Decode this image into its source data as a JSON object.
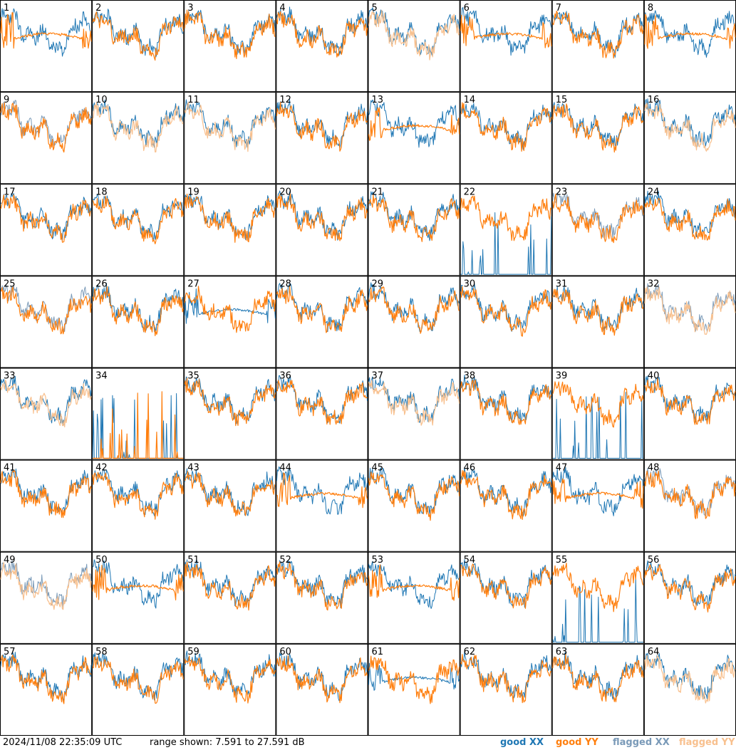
{
  "chart_data": {
    "type": "line",
    "panel_labels": [
      "1",
      "2",
      "3",
      "4",
      "5",
      "6",
      "7",
      "8",
      "9",
      "10",
      "11",
      "12",
      "13",
      "14",
      "15",
      "16",
      "17",
      "18",
      "19",
      "20",
      "21",
      "22",
      "23",
      "24",
      "25",
      "26",
      "27",
      "28",
      "29",
      "30",
      "31",
      "32",
      "33",
      "34",
      "35",
      "36",
      "37",
      "38",
      "39",
      "40",
      "41",
      "42",
      "43",
      "44",
      "45",
      "46",
      "47",
      "48",
      "49",
      "50",
      "51",
      "52",
      "53",
      "54",
      "55",
      "56",
      "57",
      "58",
      "59",
      "60",
      "61",
      "62",
      "63",
      "64"
    ],
    "panels": 64,
    "grid": {
      "rows": 8,
      "cols": 8
    },
    "ylim": [
      7.591,
      27.591
    ],
    "ylabel": "dB",
    "series_legend": [
      {
        "name": "good XX",
        "color": "#1f77b4"
      },
      {
        "name": "good YY",
        "color": "#ff7f0e"
      },
      {
        "name": "flagged XX",
        "color": "#7a9ab8"
      },
      {
        "name": "flagged YY",
        "color": "#f8c08e"
      }
    ],
    "panel_states": {
      "flagged_xx": [
        9,
        23,
        25,
        32,
        48,
        49
      ],
      "flagged_yy": [
        5,
        10,
        11,
        16,
        32,
        33,
        37,
        49,
        64
      ],
      "spiky_xx": [
        22,
        34,
        39,
        55
      ],
      "spiky_yy": [
        34
      ],
      "flat_xx": [
        27,
        61
      ],
      "flat_yy": [
        1,
        6,
        8,
        13,
        44,
        47,
        50,
        53
      ]
    }
  },
  "footer": {
    "timestamp": "2024/11/08 22:35:09 UTC",
    "range": "range shown: 7.591 to 27.591 dB",
    "legend_good_xx": "good XX",
    "legend_good_yy": "good YY",
    "legend_flagged_xx": "flagged XX",
    "legend_flagged_yy": "flagged YY"
  },
  "colors": {
    "good_xx": "#1f77b4",
    "good_yy": "#ff7f0e",
    "flagged_xx": "#7a9ab8",
    "flagged_yy": "#f8c08e"
  }
}
